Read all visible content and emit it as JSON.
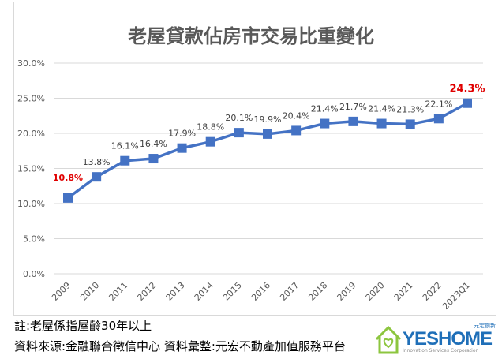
{
  "chart_data": {
    "type": "line",
    "title": "老屋貸款佔房市交易比重變化",
    "categories": [
      "2009",
      "2010",
      "2011",
      "2012",
      "2013",
      "2014",
      "2015",
      "2016",
      "2017",
      "2018",
      "2019",
      "2020",
      "2021",
      "2022",
      "2023Q1"
    ],
    "values": [
      10.8,
      13.8,
      16.1,
      16.4,
      17.9,
      18.8,
      20.1,
      19.9,
      20.4,
      21.4,
      21.7,
      21.4,
      21.3,
      22.1,
      24.3
    ],
    "data_labels": [
      "10.8%",
      "13.8%",
      "16.1%",
      "16.4%",
      "17.9%",
      "18.8%",
      "20.1%",
      "19.9%",
      "20.4%",
      "21.4%",
      "21.7%",
      "21.4%",
      "21.3%",
      "22.1%",
      "24.3%"
    ],
    "highlighted_labels": [
      "2009",
      "2023Q1"
    ],
    "ylim": [
      0,
      30
    ],
    "yticks": [
      "0.0%",
      "5.0%",
      "10.0%",
      "15.0%",
      "20.0%",
      "25.0%",
      "30.0%"
    ],
    "grid": true,
    "legend": "none",
    "colors": {
      "line": "#4472c4",
      "highlight": "#e00000",
      "label": "#404040"
    }
  },
  "notes": {
    "note": "註:老屋係指屋齡30年以上",
    "source": "資料來源:金融聯合徵信中心  資料彙整:元宏不動產加值服務平台"
  },
  "logo": {
    "brand": "YESHOME",
    "sub": "Innovation Services Corporation",
    "cn": "元宏創新"
  }
}
